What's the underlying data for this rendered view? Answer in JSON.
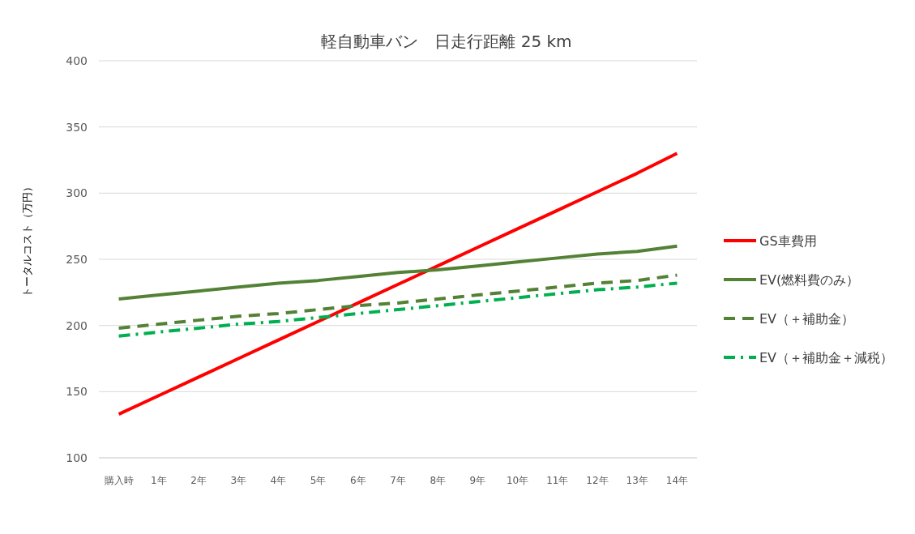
{
  "chart_data": {
    "type": "line",
    "title": "軽自動車バン　日走行距離 25 km",
    "ylabel": "トータルコスト（万円）",
    "categories": [
      "購入時",
      "1年",
      "2年",
      "3年",
      "4年",
      "5年",
      "6年",
      "7年",
      "8年",
      "9年",
      "10年",
      "11年",
      "12年",
      "13年",
      "14年"
    ],
    "series": [
      {
        "name": "GS車費用",
        "color": "#ff0000",
        "line_style": "solid",
        "values": [
          133,
          147,
          161,
          175,
          189,
          203,
          217,
          231,
          245,
          259,
          273,
          287,
          301,
          315,
          330
        ]
      },
      {
        "name": "EV(燃料費のみ）",
        "color": "#538135",
        "line_style": "solid",
        "values": [
          220,
          223,
          226,
          229,
          232,
          234,
          237,
          240,
          242,
          245,
          248,
          251,
          254,
          256,
          260
        ]
      },
      {
        "name": "EV（＋補助金）",
        "color": "#538135",
        "line_style": "dashed",
        "values": [
          198,
          201,
          204,
          207,
          209,
          212,
          215,
          217,
          220,
          223,
          226,
          229,
          232,
          234,
          238
        ]
      },
      {
        "name": "EV（＋補助金＋減税）",
        "color": "#00b050",
        "line_style": "dashdot",
        "values": [
          192,
          195,
          198,
          201,
          203,
          206,
          209,
          212,
          215,
          218,
          221,
          224,
          227,
          229,
          232
        ]
      }
    ],
    "ylim": [
      100,
      400
    ],
    "yticks": [
      100,
      150,
      200,
      250,
      300,
      350,
      400
    ],
    "grid": "y",
    "legend": "right"
  }
}
